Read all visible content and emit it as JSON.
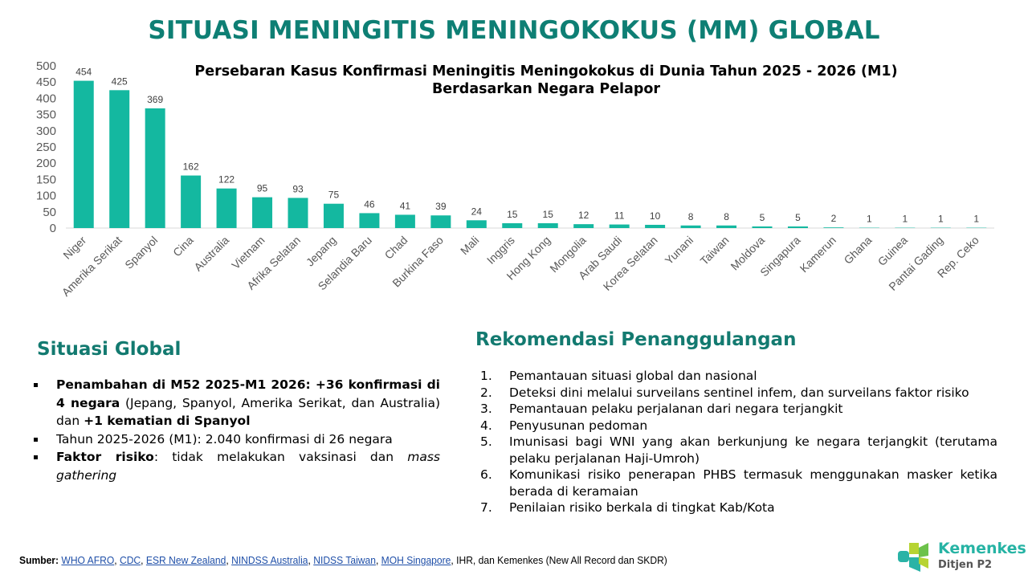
{
  "page_title": "SITUASI MENINGITIS MENINGOKOKUS (MM) GLOBAL",
  "chart_data": {
    "type": "bar",
    "title_line1": "Persebaran Kasus Konfirmasi Meningitis Meningokokus di Dunia Tahun 2025 - 2026 (M1)",
    "title_line2": "Berdasarkan Negara Pelapor",
    "categories": [
      "Niger",
      "Amerika Serikat",
      "Spanyol",
      "Cina",
      "Australia",
      "Vietnam",
      "Afrika Selatan",
      "Jepang",
      "Selandia Baru",
      "Chad",
      "Burkina Faso",
      "Mali",
      "Inggris",
      "Hong Kong",
      "Mongolia",
      "Arab Saudi",
      "Korea Selatan",
      "Yunani",
      "Taiwan",
      "Moldova",
      "Singapura",
      "Kamerun",
      "Ghana",
      "Guinea",
      "Pantai Gading",
      "Rep. Ceko"
    ],
    "values": [
      454,
      425,
      369,
      162,
      122,
      95,
      93,
      75,
      46,
      41,
      39,
      24,
      15,
      15,
      12,
      11,
      10,
      8,
      8,
      5,
      5,
      2,
      1,
      1,
      1,
      1
    ],
    "ylim": [
      0,
      500
    ],
    "yticks": [
      "0",
      "50",
      "100",
      "150",
      "200",
      "250",
      "300",
      "350",
      "400",
      "450",
      "500"
    ],
    "grid": false,
    "data_labels": true,
    "bar_color": "#14b8a0"
  },
  "situasi": {
    "heading": "Situasi Global",
    "item1_bold1": "Penambahan di M52 2025-M1 2026: +36 konfirmasi di 4 negara",
    "item1_text": " (Jepang, Spanyol, Amerika Serikat, dan Australia) dan ",
    "item1_bold2": "+1 kematian di Spanyol",
    "item2": "Tahun 2025-2026 (M1):  2.040 konfirmasi di 26 negara",
    "item3_bold": "Faktor risiko",
    "item3_text": ": tidak melakukan vaksinasi  dan ",
    "item3_italic": "mass gathering"
  },
  "rekomendasi": {
    "heading": "Rekomendasi Penanggulangan",
    "items": [
      {
        "num": "1.",
        "text": "Pemantauan situasi global dan nasional"
      },
      {
        "num": "2.",
        "text": "Deteksi dini melalui surveilans sentinel infem, dan surveilans faktor risiko"
      },
      {
        "num": "3.",
        "text": "Pemantauan pelaku perjalanan dari negara terjangkit"
      },
      {
        "num": "4.",
        "text": "Penyusunan pedoman"
      },
      {
        "num": "5.",
        "text": "Imunisasi bagi WNI yang akan berkunjung ke negara terjangkit (terutama pelaku perjalanan Haji-Umroh)"
      },
      {
        "num": "6.",
        "text": "Komunikasi risiko penerapan PHBS termasuk menggunakan masker ketika berada di keramaian"
      },
      {
        "num": "7.",
        "text": "Penilaian risiko berkala di tingkat Kab/Kota"
      }
    ]
  },
  "source": {
    "label": "Sumber:",
    "links": [
      "WHO AFRO",
      "CDC",
      "ESR New Zealand",
      "NINDSS Australia",
      "NIDSS Taiwan",
      "MOH Singapore"
    ],
    "tail": ", IHR, dan Kemenkes (New All Record dan SKDR)"
  },
  "logo": {
    "name": "Kemenkes",
    "sub": "Ditjen P2"
  }
}
